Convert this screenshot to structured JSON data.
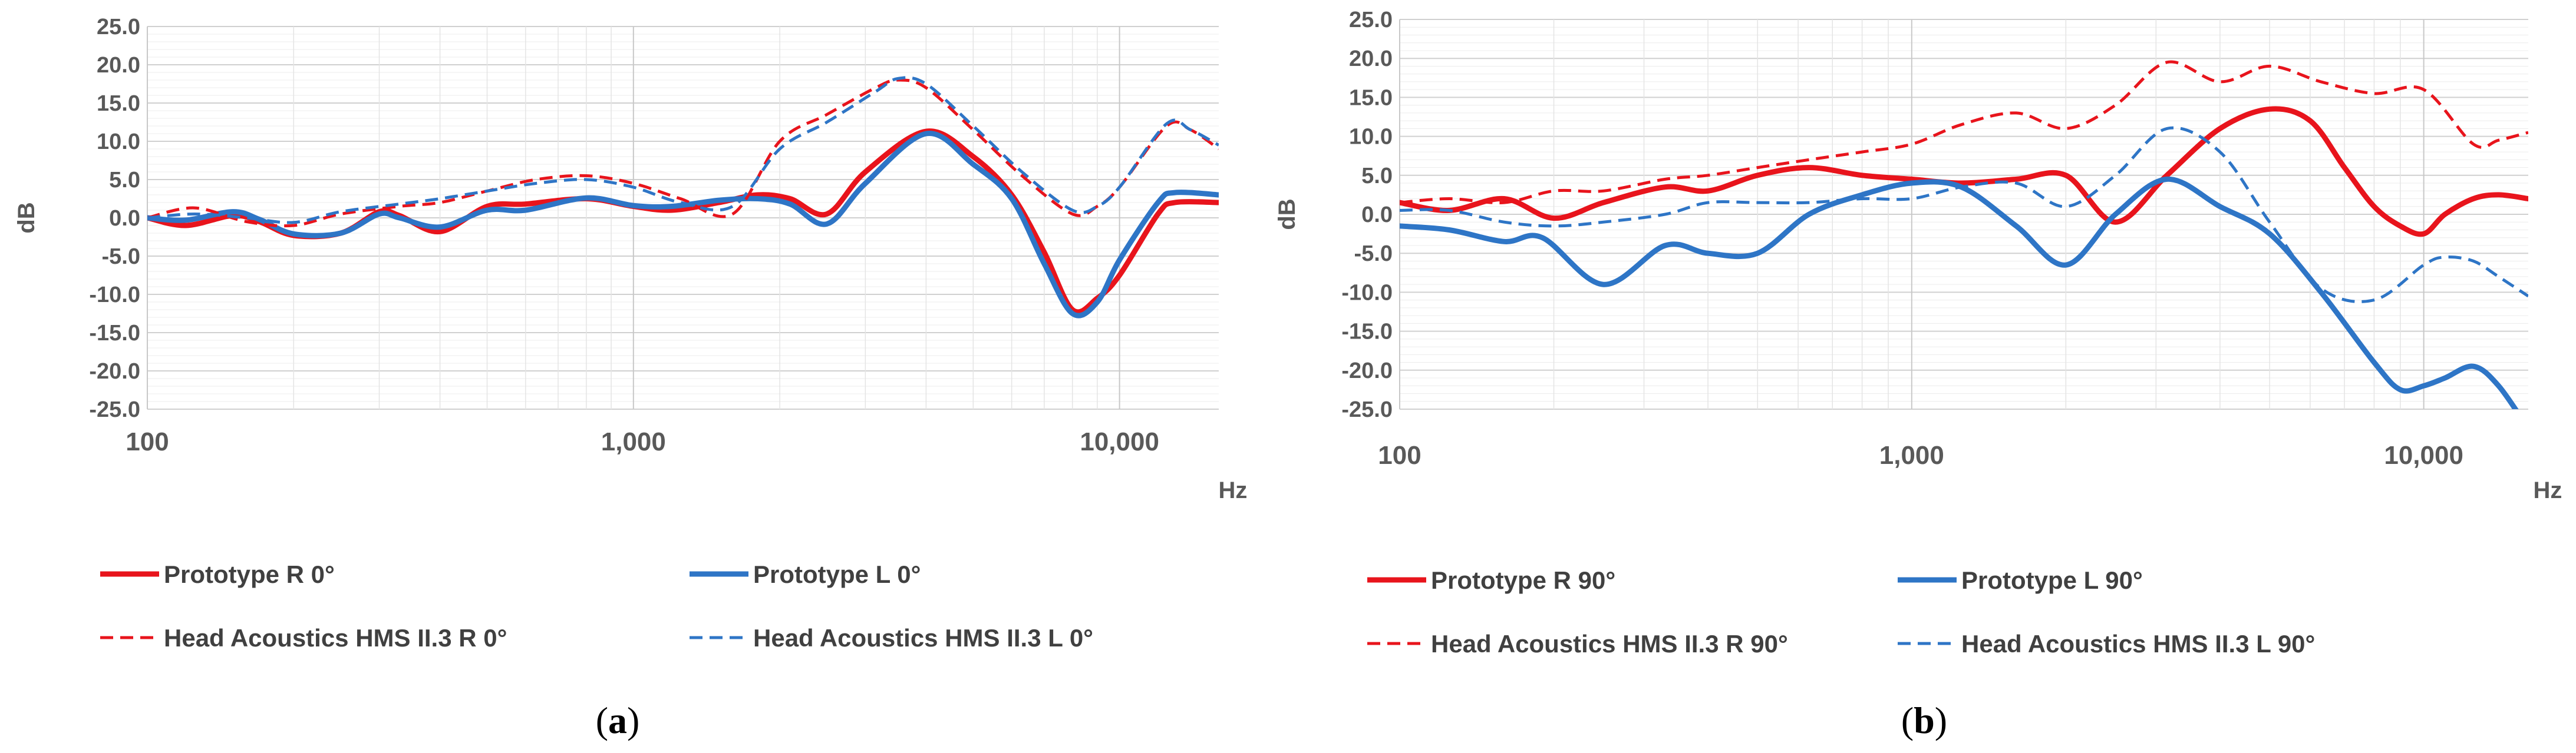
{
  "chart_data": [
    {
      "panel_label": "a",
      "type": "line",
      "xlabel": "Hz",
      "ylabel": "dB",
      "xscale": "log",
      "xlim": [
        100,
        16000
      ],
      "ylim": [
        -25,
        25
      ],
      "grid": true,
      "yticks": [
        "25.0",
        "20.0",
        "15.0",
        "10.0",
        "5.0",
        "0.0",
        "-5.0",
        "-10.0",
        "-15.0",
        "-20.0",
        "-25.0"
      ],
      "xticks": [
        "100",
        "1,000",
        "10,000"
      ],
      "legend_position": "bottom",
      "series": [
        {
          "name": "Prototype R 0°",
          "color": "#e8141c",
          "dash": "solid",
          "points": [
            [
              100,
              0.0
            ],
            [
              120,
              -1.0
            ],
            [
              150,
              0.3
            ],
            [
              170,
              -0.5
            ],
            [
              200,
              -2.3
            ],
            [
              250,
              -2.0
            ],
            [
              300,
              0.8
            ],
            [
              330,
              0.3
            ],
            [
              400,
              -1.8
            ],
            [
              500,
              1.5
            ],
            [
              600,
              1.8
            ],
            [
              800,
              2.5
            ],
            [
              1000,
              1.5
            ],
            [
              1200,
              1.0
            ],
            [
              1500,
              2.0
            ],
            [
              1800,
              3.0
            ],
            [
              2100,
              2.5
            ],
            [
              2500,
              0.5
            ],
            [
              3000,
              6.0
            ],
            [
              4000,
              11.3
            ],
            [
              5000,
              8.0
            ],
            [
              6000,
              3.0
            ],
            [
              7000,
              -4.5
            ],
            [
              8000,
              -12.0
            ],
            [
              9000,
              -10.5
            ],
            [
              10000,
              -7.5
            ],
            [
              12000,
              0.5
            ],
            [
              13000,
              2.0
            ],
            [
              16000,
              2.0
            ]
          ]
        },
        {
          "name": "Prototype L 0°",
          "color": "#2e75c6",
          "dash": "solid",
          "points": [
            [
              100,
              0.0
            ],
            [
              120,
              -0.3
            ],
            [
              150,
              0.8
            ],
            [
              170,
              -0.2
            ],
            [
              200,
              -2.1
            ],
            [
              250,
              -2.0
            ],
            [
              300,
              0.5
            ],
            [
              330,
              0.0
            ],
            [
              400,
              -1.2
            ],
            [
              500,
              1.0
            ],
            [
              600,
              1.0
            ],
            [
              800,
              2.6
            ],
            [
              1000,
              1.6
            ],
            [
              1200,
              1.5
            ],
            [
              1500,
              2.3
            ],
            [
              1800,
              2.5
            ],
            [
              2100,
              1.8
            ],
            [
              2500,
              -0.8
            ],
            [
              3000,
              4.5
            ],
            [
              4000,
              11.0
            ],
            [
              5000,
              7.0
            ],
            [
              6000,
              2.5
            ],
            [
              7000,
              -6.0
            ],
            [
              8000,
              -12.5
            ],
            [
              9000,
              -11.0
            ],
            [
              10000,
              -5.5
            ],
            [
              12000,
              2.0
            ],
            [
              13000,
              3.3
            ],
            [
              16000,
              3.0
            ]
          ]
        },
        {
          "name": "Head Acoustics HMS II.3 R 0°",
          "color": "#e8141c",
          "dash": "dashed",
          "points": [
            [
              100,
              0.0
            ],
            [
              125,
              1.3
            ],
            [
              160,
              -0.5
            ],
            [
              200,
              -1.0
            ],
            [
              250,
              0.5
            ],
            [
              330,
              1.5
            ],
            [
              400,
              2.0
            ],
            [
              500,
              3.5
            ],
            [
              630,
              5.0
            ],
            [
              800,
              5.5
            ],
            [
              1000,
              4.5
            ],
            [
              1250,
              2.5
            ],
            [
              1600,
              0.5
            ],
            [
              2000,
              10.0
            ],
            [
              2500,
              13.5
            ],
            [
              3150,
              17.0
            ],
            [
              3500,
              18.0
            ],
            [
              4000,
              17.0
            ],
            [
              5000,
              11.5
            ],
            [
              6300,
              5.5
            ],
            [
              8000,
              0.5
            ],
            [
              9000,
              1.5
            ],
            [
              10000,
              4.0
            ],
            [
              12500,
              12.0
            ],
            [
              14000,
              11.5
            ],
            [
              16000,
              9.0
            ]
          ]
        },
        {
          "name": "Head Acoustics HMS II.3 L 0°",
          "color": "#2e75c6",
          "dash": "dashed",
          "points": [
            [
              100,
              0.0
            ],
            [
              125,
              0.5
            ],
            [
              160,
              0.0
            ],
            [
              200,
              -0.6
            ],
            [
              250,
              0.8
            ],
            [
              330,
              1.8
            ],
            [
              400,
              2.5
            ],
            [
              500,
              3.5
            ],
            [
              630,
              4.5
            ],
            [
              800,
              5.0
            ],
            [
              1000,
              4.0
            ],
            [
              1250,
              2.0
            ],
            [
              1600,
              1.5
            ],
            [
              2000,
              9.0
            ],
            [
              2500,
              12.5
            ],
            [
              3150,
              16.5
            ],
            [
              3500,
              18.2
            ],
            [
              4000,
              17.5
            ],
            [
              5000,
              12.0
            ],
            [
              6300,
              6.0
            ],
            [
              8000,
              1.0
            ],
            [
              9000,
              1.5
            ],
            [
              10000,
              4.0
            ],
            [
              12500,
              12.3
            ],
            [
              14000,
              11.5
            ],
            [
              16000,
              9.5
            ]
          ]
        }
      ]
    },
    {
      "panel_label": "b",
      "type": "line",
      "xlabel": "Hz",
      "ylabel": "dB",
      "xscale": "log",
      "xlim": [
        100,
        16000
      ],
      "ylim": [
        -25,
        25
      ],
      "grid": true,
      "yticks": [
        "25.0",
        "20.0",
        "15.0",
        "10.0",
        "5.0",
        "0.0",
        "-5.0",
        "-10.0",
        "-15.0",
        "-20.0",
        "-25.0"
      ],
      "xticks": [
        "100",
        "1,000",
        "10,000"
      ],
      "legend_position": "bottom",
      "series": [
        {
          "name": "Prototype R 90°",
          "color": "#e8141c",
          "dash": "solid",
          "points": [
            [
              100,
              1.5
            ],
            [
              125,
              0.5
            ],
            [
              160,
              2.0
            ],
            [
              200,
              -0.5
            ],
            [
              250,
              1.5
            ],
            [
              330,
              3.5
            ],
            [
              400,
              3.0
            ],
            [
              500,
              5.0
            ],
            [
              630,
              6.0
            ],
            [
              800,
              5.0
            ],
            [
              1000,
              4.5
            ],
            [
              1250,
              4.0
            ],
            [
              1600,
              4.5
            ],
            [
              2000,
              5.0
            ],
            [
              2500,
              -1.0
            ],
            [
              3150,
              5.0
            ],
            [
              4000,
              11.0
            ],
            [
              5000,
              13.5
            ],
            [
              6000,
              12.0
            ],
            [
              7000,
              6.0
            ],
            [
              8000,
              1.0
            ],
            [
              9000,
              -1.5
            ],
            [
              10000,
              -2.5
            ],
            [
              11000,
              0.0
            ],
            [
              12500,
              2.0
            ],
            [
              14000,
              2.5
            ],
            [
              16000,
              2.0
            ]
          ]
        },
        {
          "name": "Prototype L 90°",
          "color": "#2e75c6",
          "dash": "solid",
          "points": [
            [
              100,
              -1.5
            ],
            [
              125,
              -2.0
            ],
            [
              160,
              -3.5
            ],
            [
              190,
              -3.0
            ],
            [
              250,
              -9.0
            ],
            [
              330,
              -4.0
            ],
            [
              400,
              -5.0
            ],
            [
              500,
              -5.0
            ],
            [
              630,
              0.0
            ],
            [
              800,
              2.5
            ],
            [
              1000,
              4.0
            ],
            [
              1250,
              3.5
            ],
            [
              1600,
              -1.5
            ],
            [
              2000,
              -6.5
            ],
            [
              2500,
              0.0
            ],
            [
              3150,
              4.5
            ],
            [
              4000,
              1.0
            ],
            [
              5000,
              -2.5
            ],
            [
              6300,
              -10.0
            ],
            [
              8000,
              -19.0
            ],
            [
              9000,
              -22.5
            ],
            [
              10000,
              -22.0
            ],
            [
              11000,
              -21.0
            ],
            [
              12500,
              -19.5
            ],
            [
              14000,
              -22.0
            ],
            [
              16000,
              -27.5
            ]
          ]
        },
        {
          "name": "Head Acoustics HMS II.3 R 90°",
          "color": "#e8141c",
          "dash": "dashed",
          "points": [
            [
              100,
              1.5
            ],
            [
              125,
              2.0
            ],
            [
              160,
              1.5
            ],
            [
              200,
              3.0
            ],
            [
              250,
              3.0
            ],
            [
              330,
              4.5
            ],
            [
              400,
              5.0
            ],
            [
              500,
              6.0
            ],
            [
              630,
              7.0
            ],
            [
              800,
              8.0
            ],
            [
              1000,
              9.0
            ],
            [
              1250,
              11.5
            ],
            [
              1600,
              13.0
            ],
            [
              2000,
              11.0
            ],
            [
              2500,
              14.0
            ],
            [
              3150,
              19.5
            ],
            [
              4000,
              17.0
            ],
            [
              5000,
              19.0
            ],
            [
              6300,
              17.0
            ],
            [
              8000,
              15.5
            ],
            [
              10000,
              16.0
            ],
            [
              12500,
              9.0
            ],
            [
              14000,
              9.5
            ],
            [
              16000,
              10.5
            ]
          ]
        },
        {
          "name": "Head Acoustics HMS II.3 L 90°",
          "color": "#2e75c6",
          "dash": "dashed",
          "points": [
            [
              100,
              0.5
            ],
            [
              125,
              0.5
            ],
            [
              160,
              -1.0
            ],
            [
              200,
              -1.5
            ],
            [
              250,
              -1.0
            ],
            [
              330,
              0.0
            ],
            [
              400,
              1.5
            ],
            [
              500,
              1.5
            ],
            [
              630,
              1.5
            ],
            [
              800,
              2.0
            ],
            [
              1000,
              2.0
            ],
            [
              1250,
              3.5
            ],
            [
              1600,
              4.0
            ],
            [
              2000,
              1.0
            ],
            [
              2500,
              5.0
            ],
            [
              3150,
              11.0
            ],
            [
              4000,
              8.0
            ],
            [
              5000,
              -1.0
            ],
            [
              6300,
              -9.5
            ],
            [
              8000,
              -11.0
            ],
            [
              10000,
              -6.5
            ],
            [
              11000,
              -5.5
            ],
            [
              12500,
              -6.0
            ],
            [
              14000,
              -8.0
            ],
            [
              16000,
              -10.5
            ]
          ]
        }
      ]
    }
  ]
}
